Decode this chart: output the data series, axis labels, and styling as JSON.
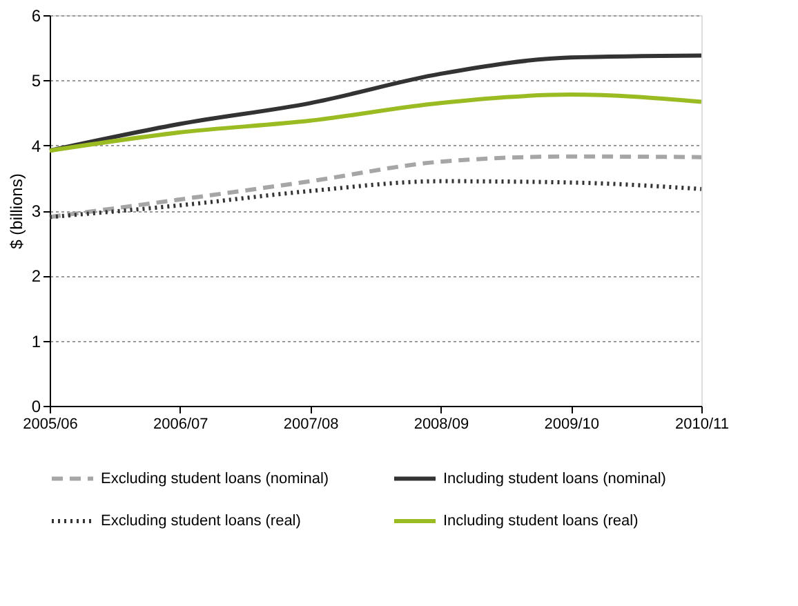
{
  "chart_data": {
    "type": "line",
    "ylabel": "$ (billions)",
    "categories": [
      "2005/06",
      "2006/07",
      "2007/08",
      "2008/09",
      "2009/10",
      "2010/11"
    ],
    "series": [
      {
        "name": "Excluding student loans (nominal)",
        "color": "#a6a6a6",
        "line_style": "dashed",
        "values": [
          2.9,
          3.17,
          3.45,
          3.75,
          3.83,
          3.82
        ]
      },
      {
        "name": "Including student loans (nominal)",
        "color": "#333333",
        "line_style": "solid",
        "values": [
          3.92,
          4.33,
          4.65,
          5.1,
          5.35,
          5.38
        ]
      },
      {
        "name": "Excluding student loans (real)",
        "color": "#333333",
        "line_style": "dotted",
        "values": [
          2.9,
          3.08,
          3.3,
          3.45,
          3.43,
          3.33
        ]
      },
      {
        "name": "Including student loans (real)",
        "color": "#9bbb22",
        "line_style": "solid",
        "values": [
          3.92,
          4.2,
          4.38,
          4.65,
          4.78,
          4.67
        ]
      }
    ],
    "ylim": [
      0,
      6
    ],
    "yticks": [
      0,
      1,
      2,
      3,
      4,
      5,
      6
    ],
    "grid": "y",
    "legend": "bottom",
    "marker": "none"
  }
}
